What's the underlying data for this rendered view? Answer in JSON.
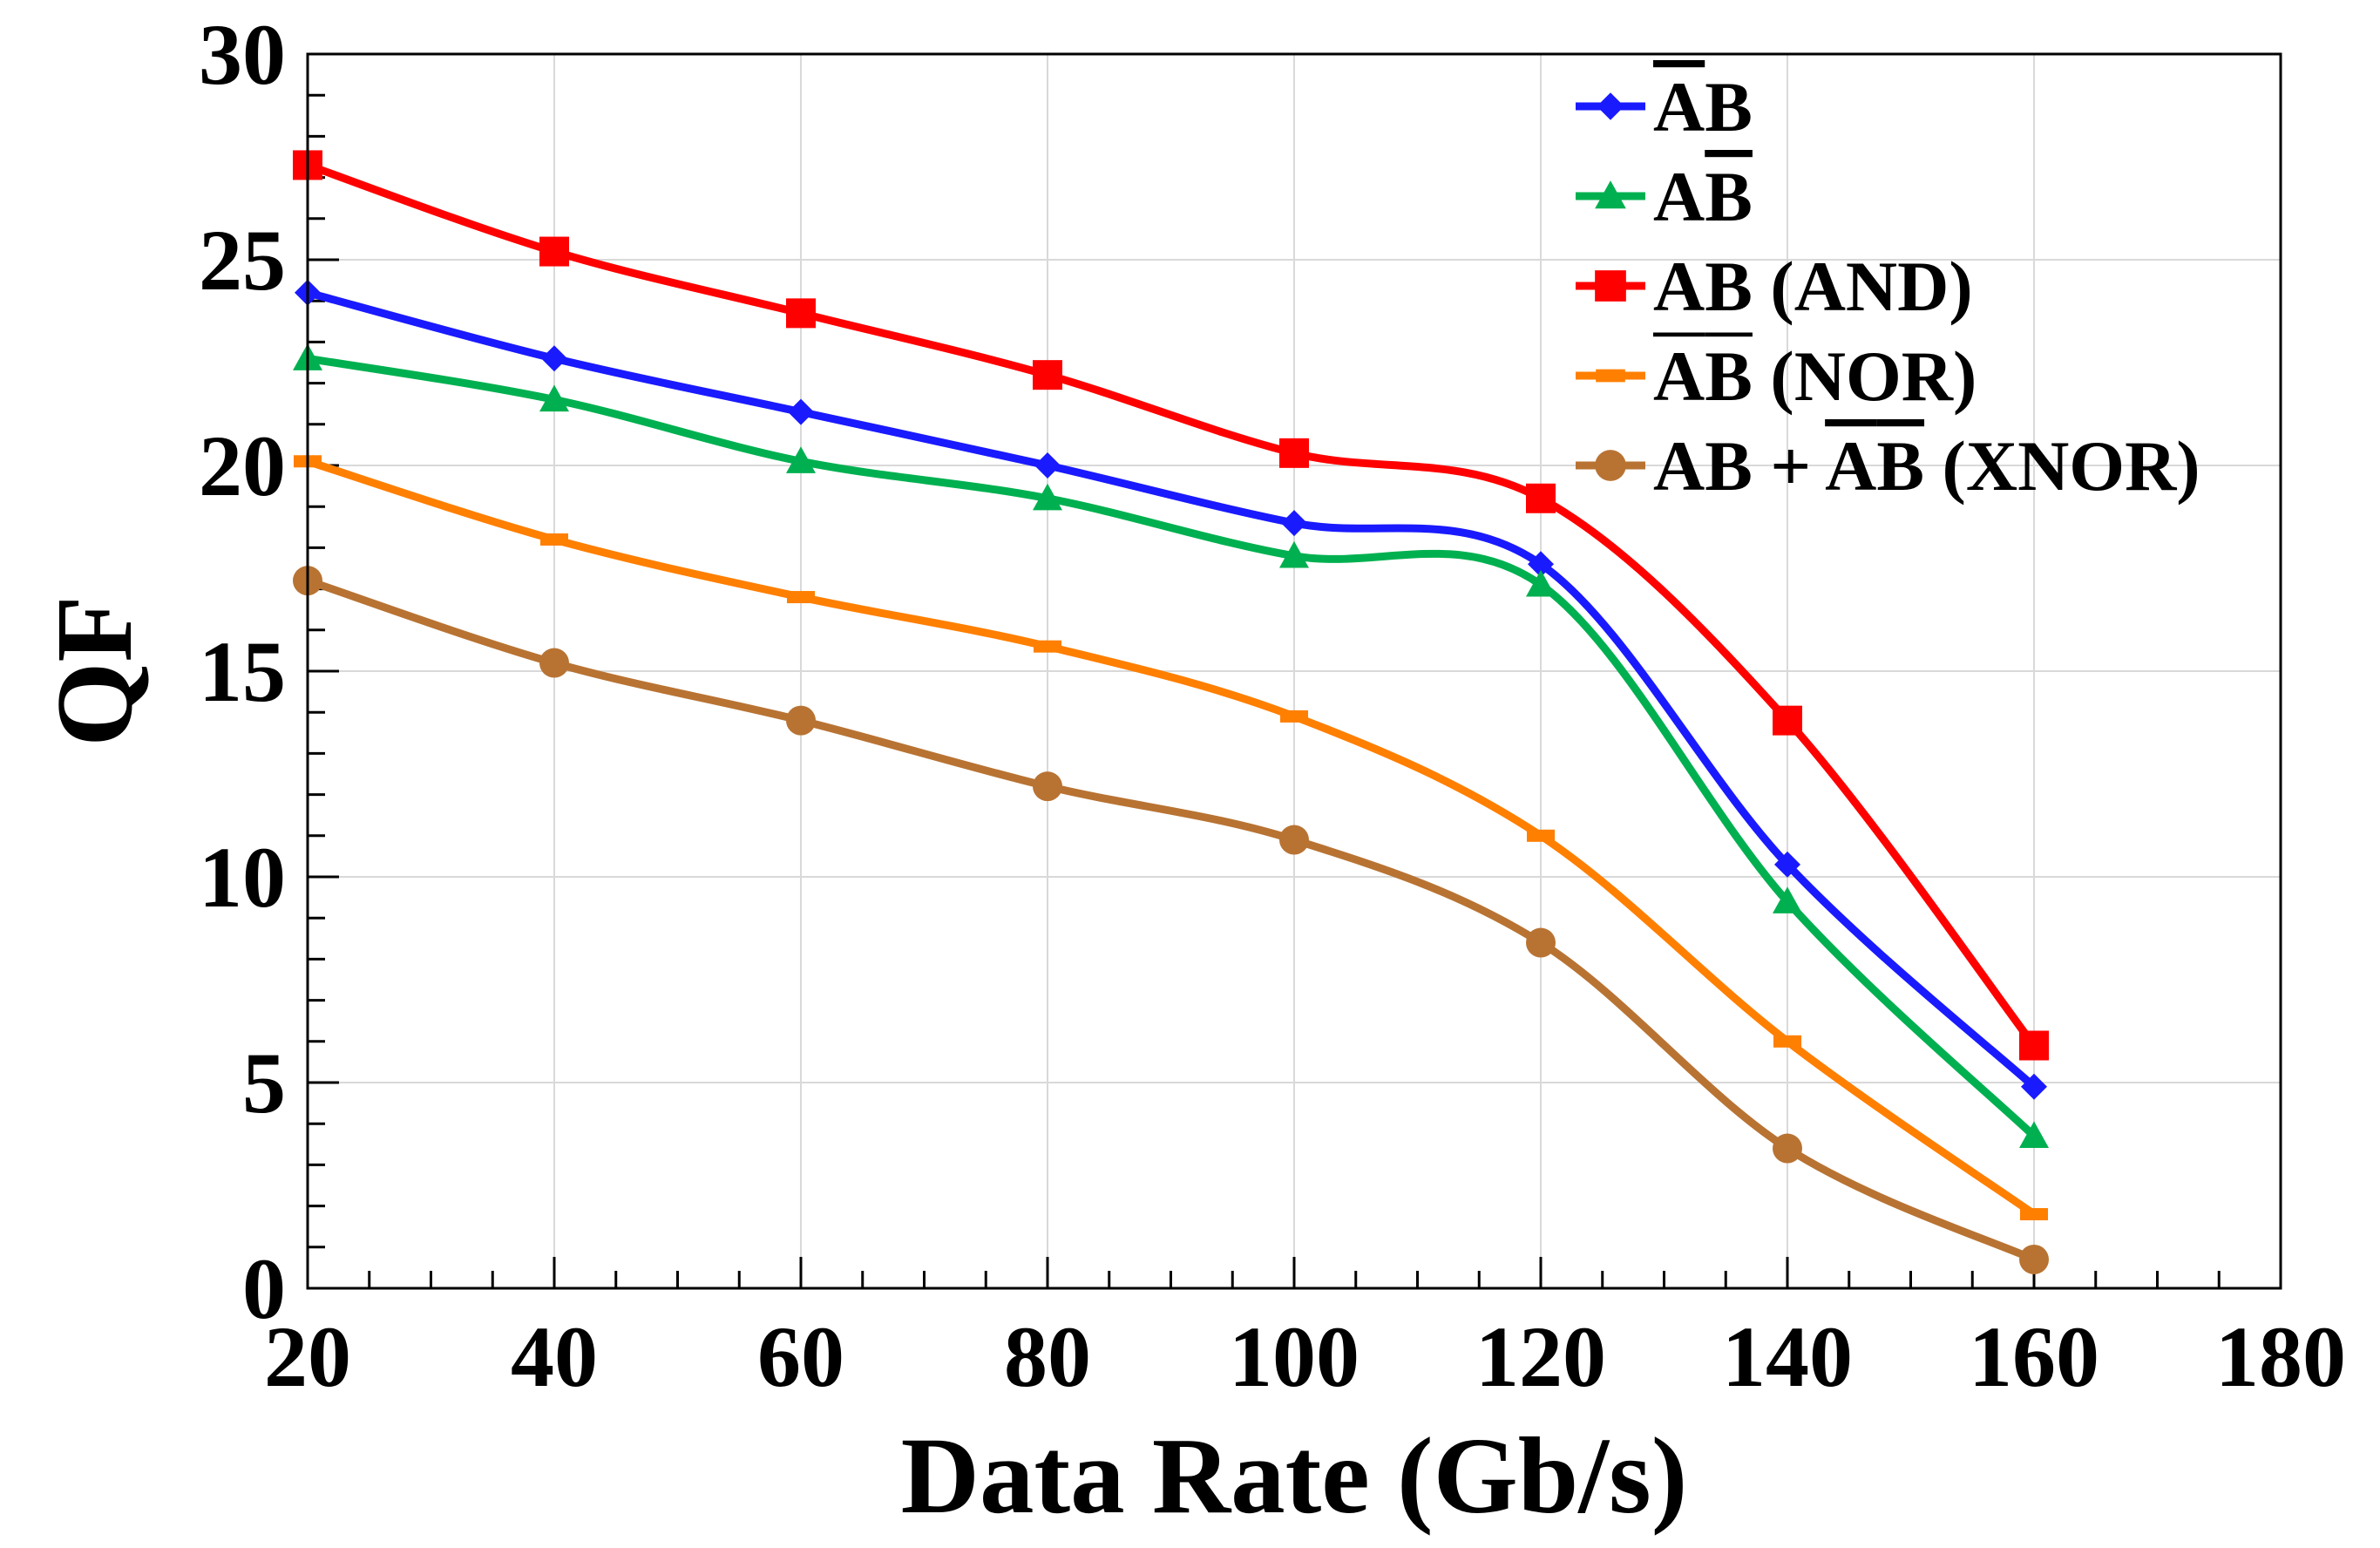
{
  "chart_data": {
    "type": "line",
    "xlabel": "Data Rate (Gb/s)",
    "ylabel": "QF",
    "xlim": [
      20,
      180
    ],
    "ylim": [
      0,
      30
    ],
    "x_ticks": [
      "20",
      "40",
      "60",
      "80",
      "100",
      "120",
      "140",
      "160",
      "180"
    ],
    "y_ticks": [
      "0",
      "5",
      "10",
      "15",
      "20",
      "25",
      "30"
    ],
    "grid": true,
    "legend_position": "top-right",
    "x": [
      20,
      40,
      60,
      80,
      100,
      120,
      140,
      160
    ],
    "series": [
      {
        "name": "ĀB",
        "legend": [
          {
            "t": "A",
            "bar": true
          },
          {
            "t": "B",
            "bar": false
          }
        ],
        "color": "#1a1aff",
        "marker": "diamond",
        "values": [
          24.2,
          22.6,
          21.3,
          20.0,
          18.6,
          17.6,
          10.3,
          4.9
        ]
      },
      {
        "name": "AB̄",
        "legend": [
          {
            "t": "A",
            "bar": false
          },
          {
            "t": "B",
            "bar": true
          }
        ],
        "color": "#00b050",
        "marker": "triangle",
        "values": [
          22.6,
          21.6,
          20.1,
          19.2,
          17.8,
          17.1,
          9.4,
          3.7
        ]
      },
      {
        "name": "AB (AND)",
        "legend": [
          {
            "t": "AB (AND)",
            "bar": false
          }
        ],
        "color": "#ff0000",
        "marker": "square",
        "values": [
          27.3,
          25.2,
          23.7,
          22.2,
          20.3,
          19.2,
          13.8,
          5.9
        ]
      },
      {
        "name": "ĀB̄ (NOR)",
        "legend": [
          {
            "t": "A",
            "bar": true
          },
          {
            "t": "B",
            "bar": true
          },
          {
            "t": " (NOR)",
            "bar": false
          }
        ],
        "color": "#ff7f00",
        "marker": "dash",
        "values": [
          20.1,
          18.2,
          16.8,
          15.6,
          13.9,
          11.0,
          6.0,
          1.8
        ]
      },
      {
        "name": "AB + ĀB̄ (XNOR)",
        "legend": [
          {
            "t": "AB + ",
            "bar": false
          },
          {
            "t": "A",
            "bar": true
          },
          {
            "t": "B",
            "bar": true
          },
          {
            "t": " (XNOR)",
            "bar": false
          }
        ],
        "color": "#b87333",
        "marker": "circle",
        "values": [
          17.2,
          15.2,
          13.8,
          12.2,
          10.9,
          8.4,
          3.4,
          0.7
        ]
      }
    ]
  }
}
